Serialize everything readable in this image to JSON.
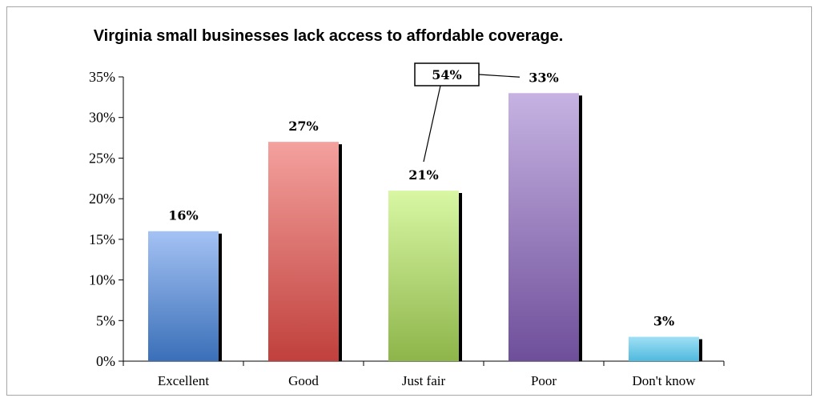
{
  "chart_data": {
    "type": "bar",
    "title": "Virginia small businesses lack access to affordable coverage.",
    "categories": [
      "Excellent",
      "Good",
      "Just fair",
      "Poor",
      "Don't know"
    ],
    "values": [
      16,
      27,
      21,
      33,
      3
    ],
    "value_labels": [
      "16%",
      "27%",
      "21%",
      "33%",
      "3%"
    ],
    "yticks": [
      "0%",
      "5%",
      "10%",
      "15%",
      "20%",
      "25%",
      "30%",
      "35%"
    ],
    "ylim": [
      0,
      35
    ],
    "grid": false,
    "legend": "none",
    "annotation": {
      "text": "54%",
      "refers_to": [
        "Just fair",
        "Poor"
      ]
    },
    "colors": [
      {
        "top": "#a4c2f4",
        "bottom": "#3a6fb8"
      },
      {
        "top": "#f4a19e",
        "bottom": "#c0403c"
      },
      {
        "top": "#d9f7a4",
        "bottom": "#8db54a"
      },
      {
        "top": "#c6b3e2",
        "bottom": "#6e4e9a"
      },
      {
        "top": "#9fe0f5",
        "bottom": "#4fb9de"
      }
    ]
  }
}
